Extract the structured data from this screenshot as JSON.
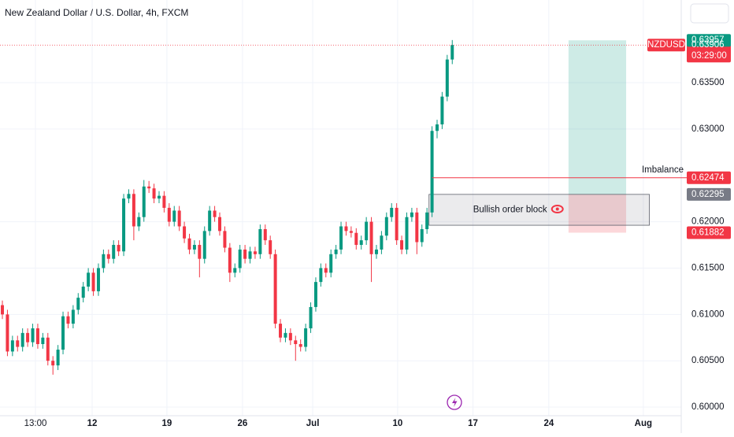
{
  "chart_data": {
    "type": "candlestick",
    "title": "New Zealand Dollar / U.S. Dollar, 4h, FXCM",
    "up_color": "#089981",
    "down_color": "#f23645",
    "xlim": [
      -0.47,
      134.3
    ],
    "ylim": [
      0.59907,
      0.64392
    ],
    "xticks": [
      {
        "value": 6.54,
        "label": "13:00"
      },
      {
        "value": 17.76,
        "label": "12"
      },
      {
        "value": 32.55,
        "label": "19"
      },
      {
        "value": 47.5,
        "label": "26"
      },
      {
        "value": 61.4,
        "label": "Jul"
      },
      {
        "value": 78.2,
        "label": "10"
      },
      {
        "value": 93.1,
        "label": "17"
      },
      {
        "value": 108.1,
        "label": "24"
      },
      {
        "value": 126.8,
        "label": "Aug"
      }
    ],
    "yticks": [
      {
        "value": 0.635,
        "label": "0.63500"
      },
      {
        "value": 0.63,
        "label": "0.63000"
      },
      {
        "value": 0.62,
        "label": "0.62000"
      },
      {
        "value": 0.615,
        "label": "0.61500"
      },
      {
        "value": 0.61,
        "label": "0.61000"
      },
      {
        "value": 0.605,
        "label": "0.60500"
      },
      {
        "value": 0.6,
        "label": "0.60000"
      }
    ],
    "grid": true,
    "ohlc": [
      [
        0.611,
        0.6115,
        0.6095,
        0.61
      ],
      [
        0.61,
        0.6105,
        0.6055,
        0.606
      ],
      [
        0.606,
        0.6077,
        0.6055,
        0.6072
      ],
      [
        0.6072,
        0.6077,
        0.606,
        0.6065
      ],
      [
        0.6065,
        0.6085,
        0.606,
        0.608
      ],
      [
        0.608,
        0.6085,
        0.6065,
        0.607
      ],
      [
        0.607,
        0.609,
        0.6065,
        0.6085
      ],
      [
        0.6085,
        0.609,
        0.6063,
        0.6068
      ],
      [
        0.6068,
        0.608,
        0.6063,
        0.6075
      ],
      [
        0.6075,
        0.608,
        0.6045,
        0.605
      ],
      [
        0.605,
        0.6055,
        0.6035,
        0.6045
      ],
      [
        0.6045,
        0.6067,
        0.604,
        0.6062
      ],
      [
        0.6062,
        0.6103,
        0.6057,
        0.6098
      ],
      [
        0.6098,
        0.6103,
        0.6085,
        0.609
      ],
      [
        0.609,
        0.611,
        0.6085,
        0.6105
      ],
      [
        0.6105,
        0.6123,
        0.61,
        0.6118
      ],
      [
        0.6118,
        0.6135,
        0.6113,
        0.613
      ],
      [
        0.613,
        0.615,
        0.6125,
        0.6145
      ],
      [
        0.6145,
        0.615,
        0.612,
        0.6125
      ],
      [
        0.6125,
        0.6155,
        0.612,
        0.615
      ],
      [
        0.615,
        0.617,
        0.6145,
        0.6165
      ],
      [
        0.6165,
        0.617,
        0.6155,
        0.616
      ],
      [
        0.616,
        0.618,
        0.6155,
        0.6175
      ],
      [
        0.6175,
        0.618,
        0.6163,
        0.6168
      ],
      [
        0.6168,
        0.623,
        0.6163,
        0.6225
      ],
      [
        0.6225,
        0.6235,
        0.622,
        0.623
      ],
      [
        0.623,
        0.6235,
        0.618,
        0.6195
      ],
      [
        0.6195,
        0.621,
        0.619,
        0.6205
      ],
      [
        0.6205,
        0.6245,
        0.62,
        0.6238
      ],
      [
        0.6238,
        0.6244,
        0.6231,
        0.6236
      ],
      [
        0.6236,
        0.6241,
        0.622,
        0.6225
      ],
      [
        0.6225,
        0.6233,
        0.622,
        0.6228
      ],
      [
        0.6228,
        0.6233,
        0.621,
        0.6215
      ],
      [
        0.6215,
        0.622,
        0.6195,
        0.62
      ],
      [
        0.62,
        0.6217,
        0.6195,
        0.6212
      ],
      [
        0.6212,
        0.6217,
        0.619,
        0.6195
      ],
      [
        0.6195,
        0.62,
        0.6177,
        0.6182
      ],
      [
        0.6182,
        0.6187,
        0.6165,
        0.617
      ],
      [
        0.617,
        0.618,
        0.6165,
        0.6175
      ],
      [
        0.6175,
        0.618,
        0.614,
        0.616
      ],
      [
        0.616,
        0.6195,
        0.6155,
        0.619
      ],
      [
        0.619,
        0.6217,
        0.6185,
        0.6212
      ],
      [
        0.6212,
        0.6217,
        0.62,
        0.6205
      ],
      [
        0.6205,
        0.621,
        0.6185,
        0.619
      ],
      [
        0.619,
        0.6195,
        0.6167,
        0.6172
      ],
      [
        0.6172,
        0.6177,
        0.6135,
        0.6145
      ],
      [
        0.6145,
        0.6155,
        0.614,
        0.615
      ],
      [
        0.615,
        0.6175,
        0.6145,
        0.617
      ],
      [
        0.617,
        0.6175,
        0.6155,
        0.616
      ],
      [
        0.616,
        0.6173,
        0.6155,
        0.6168
      ],
      [
        0.6168,
        0.6173,
        0.616,
        0.6165
      ],
      [
        0.6165,
        0.6197,
        0.616,
        0.6192
      ],
      [
        0.6192,
        0.6197,
        0.6175,
        0.618
      ],
      [
        0.618,
        0.6185,
        0.616,
        0.6165
      ],
      [
        0.6165,
        0.617,
        0.6085,
        0.609
      ],
      [
        0.609,
        0.6095,
        0.607,
        0.6075
      ],
      [
        0.6075,
        0.6085,
        0.607,
        0.608
      ],
      [
        0.608,
        0.6085,
        0.6067,
        0.6072
      ],
      [
        0.6072,
        0.6077,
        0.605,
        0.6068
      ],
      [
        0.6068,
        0.6073,
        0.606,
        0.6065
      ],
      [
        0.6065,
        0.609,
        0.606,
        0.6085
      ],
      [
        0.6085,
        0.6113,
        0.608,
        0.6108
      ],
      [
        0.6108,
        0.614,
        0.6103,
        0.6135
      ],
      [
        0.6135,
        0.6155,
        0.613,
        0.615
      ],
      [
        0.615,
        0.6155,
        0.614,
        0.6145
      ],
      [
        0.6145,
        0.617,
        0.614,
        0.6165
      ],
      [
        0.6165,
        0.6175,
        0.616,
        0.617
      ],
      [
        0.617,
        0.62,
        0.6165,
        0.6195
      ],
      [
        0.6195,
        0.62,
        0.6185,
        0.619
      ],
      [
        0.619,
        0.6195,
        0.6183,
        0.6188
      ],
      [
        0.6188,
        0.6193,
        0.617,
        0.6175
      ],
      [
        0.6175,
        0.6185,
        0.617,
        0.618
      ],
      [
        0.618,
        0.6205,
        0.6175,
        0.62
      ],
      [
        0.62,
        0.6205,
        0.6135,
        0.6165
      ],
      [
        0.6165,
        0.6175,
        0.616,
        0.617
      ],
      [
        0.617,
        0.619,
        0.6165,
        0.6185
      ],
      [
        0.6185,
        0.621,
        0.618,
        0.6205
      ],
      [
        0.6205,
        0.622,
        0.62,
        0.6215
      ],
      [
        0.6215,
        0.622,
        0.6175,
        0.618
      ],
      [
        0.618,
        0.6185,
        0.6165,
        0.617
      ],
      [
        0.617,
        0.621,
        0.6165,
        0.6205
      ],
      [
        0.6205,
        0.6215,
        0.62,
        0.621
      ],
      [
        0.621,
        0.6215,
        0.6165,
        0.6178
      ],
      [
        0.6178,
        0.6197,
        0.6173,
        0.6192
      ],
      [
        0.6192,
        0.6215,
        0.6187,
        0.621
      ],
      [
        0.621,
        0.6303,
        0.6205,
        0.6298
      ],
      [
        0.6298,
        0.631,
        0.629,
        0.6305
      ],
      [
        0.6305,
        0.634,
        0.63,
        0.6335
      ],
      [
        0.6335,
        0.638,
        0.633,
        0.6375
      ],
      [
        0.6375,
        0.6396,
        0.637,
        0.63906
      ]
    ],
    "last_price": {
      "symbol": "NZDUSD",
      "value": 0.63906,
      "countdown": "03:29:00",
      "color": "#f23645"
    },
    "price_labels": [
      {
        "value": 0.63957,
        "color": "#089981"
      },
      {
        "value": 0.62474,
        "color": "#f23645"
      },
      {
        "value": 0.62295,
        "color": "#787b86"
      },
      {
        "value": 0.61882,
        "color": "#f23645"
      }
    ],
    "imbalance": {
      "text": "Imbalance",
      "value": 0.62474,
      "x": 85,
      "color": "#f23645"
    },
    "order_block": {
      "text": "Bullish order block",
      "top": 0.62295,
      "bottom": 0.61962,
      "x": [
        84.4,
        128.0
      ]
    },
    "position": {
      "entry": 0.62295,
      "target": 0.63957,
      "stop": 0.61882,
      "x": [
        112.0,
        123.4
      ]
    }
  }
}
